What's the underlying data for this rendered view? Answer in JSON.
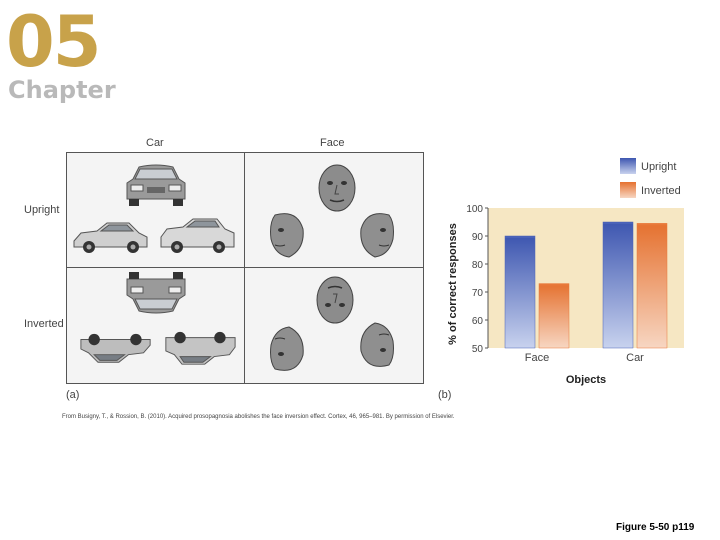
{
  "chapter": {
    "number": "05",
    "word": "Chapter"
  },
  "figure_a": {
    "columns": [
      "Car",
      "Face"
    ],
    "rows": [
      "Upright",
      "Inverted"
    ],
    "panel_label": "(a)"
  },
  "figure_b": {
    "panel_label": "(b)"
  },
  "credit": "From Busigny, T., & Rossion, B. (2010). Acquired prosopagnosia abolishes the face inversion effect. Cortex, 46, 965–981. By permission of Elsevier.",
  "figure_ref": "Figure 5-50 p119",
  "colors": {
    "upright": "#4a62b8",
    "inverted": "#e8793a",
    "plot_bg": "#f6e7c3"
  },
  "chart_data": {
    "type": "bar",
    "categories": [
      "Face",
      "Car"
    ],
    "series": [
      {
        "name": "Upright",
        "values": [
          90,
          95
        ]
      },
      {
        "name": "Inverted",
        "values": [
          73,
          94.5
        ]
      }
    ],
    "ylabel": "% of correct responses",
    "xlabel": "Objects",
    "ylim": [
      50,
      100
    ],
    "yticks": [
      50,
      60,
      70,
      80,
      90,
      100
    ],
    "legend": "top-right",
    "grid": false
  }
}
